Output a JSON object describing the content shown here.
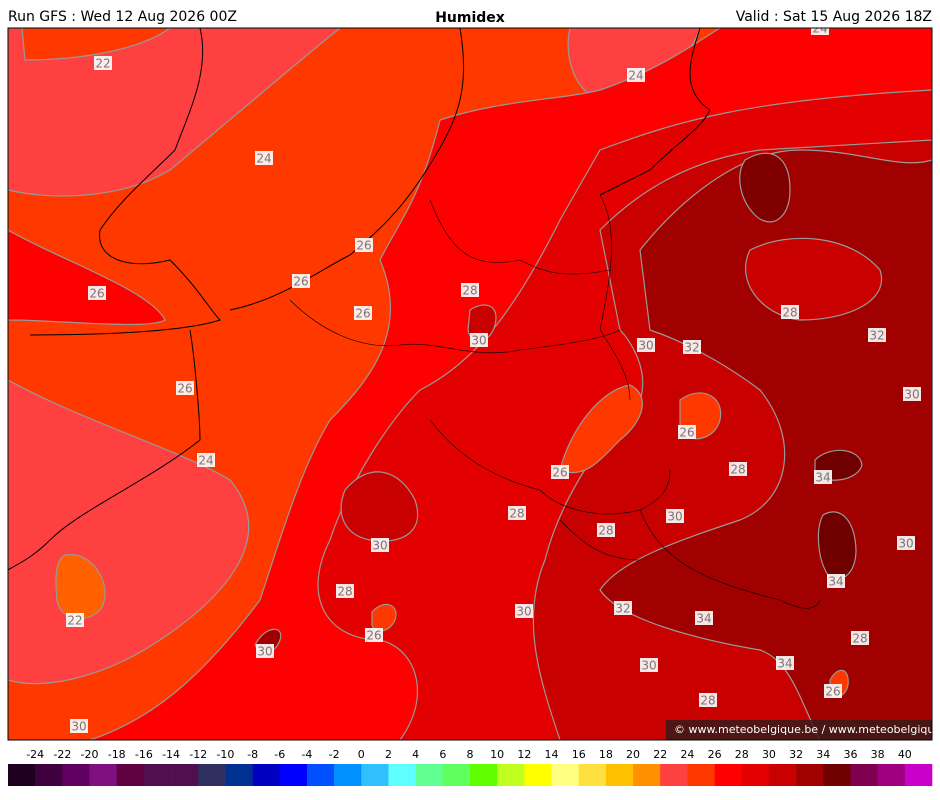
{
  "header": {
    "run": "Run GFS : Wed 12 Aug 2026 00Z",
    "title": "Humidex",
    "valid": "Valid : Sat 15 Aug 2026 18Z"
  },
  "map": {
    "contour_labels": [
      22,
      24,
      24,
      24,
      26,
      26,
      26,
      26,
      28,
      28,
      30,
      30,
      32,
      32,
      30,
      26,
      26,
      24,
      26,
      28,
      34,
      28,
      28,
      30,
      30,
      30,
      34,
      28,
      22,
      30,
      32,
      34,
      26,
      30,
      30,
      34,
      28,
      26,
      28,
      30
    ],
    "copyright": "© www.meteobelgique.be / www.meteobelgique.be"
  },
  "colorbar": {
    "ticks": [
      -24,
      -22,
      -20,
      -18,
      -16,
      -14,
      -12,
      -10,
      -8,
      -6,
      -4,
      -2,
      0,
      2,
      4,
      6,
      8,
      10,
      12,
      14,
      16,
      18,
      20,
      22,
      24,
      26,
      28,
      30,
      32,
      34,
      36,
      38,
      40
    ],
    "colors": [
      "#200020",
      "#400040",
      "#600060",
      "#801080",
      "#600040",
      "#501050",
      "#501050",
      "#303060",
      "#003090",
      "#0000c0",
      "#0000ff",
      "#0050ff",
      "#0090ff",
      "#30c0ff",
      "#60ffff",
      "#60ff90",
      "#60ff60",
      "#60ff00",
      "#c0ff20",
      "#ffff00",
      "#ffff80",
      "#ffe040",
      "#ffc000",
      "#ff9000",
      "#ff4040",
      "#ff3800",
      "#ff0000",
      "#e20000",
      "#c80000",
      "#a00000",
      "#700000",
      "#800050",
      "#a00080",
      "#c800c8"
    ]
  }
}
